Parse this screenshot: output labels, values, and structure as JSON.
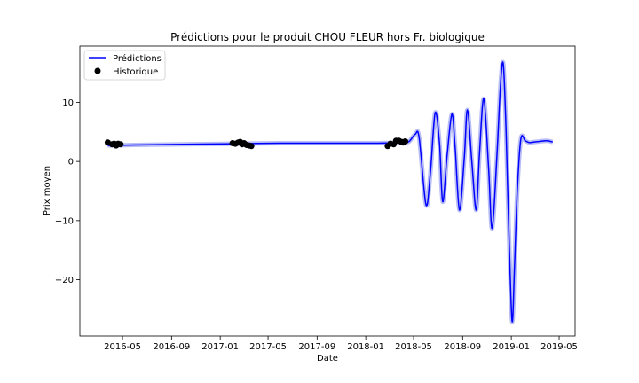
{
  "chart_data": {
    "type": "line",
    "title": "Prédictions pour le produit CHOU FLEUR hors Fr. biologique",
    "xlabel": "Date",
    "ylabel": "Prix moyen",
    "xlim": [
      "2016-01-15",
      "2019-06-10"
    ],
    "ylim": [
      -29.5,
      19.5
    ],
    "x_ticks": [
      "2016-05",
      "2016-09",
      "2017-01",
      "2017-05",
      "2017-09",
      "2018-01",
      "2018-05",
      "2018-09",
      "2019-01",
      "2019-05"
    ],
    "y_ticks": [
      -20,
      -10,
      0,
      10
    ],
    "grid": false,
    "legend_position": "top-left",
    "series": [
      {
        "name": "Prédictions",
        "kind": "line",
        "color": "#0000ff",
        "band_color": "#b8bdf5",
        "x": [
          "2016-03-25",
          "2016-06-01",
          "2016-10-01",
          "2017-02-01",
          "2017-06-01",
          "2017-10-01",
          "2018-02-01",
          "2018-04-05",
          "2018-04-20",
          "2018-05-05",
          "2018-05-15",
          "2018-06-01",
          "2018-06-12",
          "2018-06-24",
          "2018-07-05",
          "2018-07-13",
          "2018-07-24",
          "2018-08-05",
          "2018-08-13",
          "2018-08-24",
          "2018-09-05",
          "2018-09-13",
          "2018-09-24",
          "2018-10-05",
          "2018-10-13",
          "2018-10-24",
          "2018-11-05",
          "2018-11-14",
          "2018-11-26",
          "2018-12-05",
          "2018-12-12",
          "2018-12-19",
          "2018-12-26",
          "2019-01-03",
          "2019-01-09",
          "2019-01-16",
          "2019-01-25",
          "2019-02-05",
          "2019-02-15",
          "2019-02-28",
          "2019-03-15",
          "2019-03-31",
          "2019-04-15"
        ],
        "y": [
          2.7,
          2.8,
          2.9,
          3.0,
          3.1,
          3.1,
          3.1,
          3.2,
          3.4,
          4.6,
          4.0,
          -7.3,
          -2.0,
          8.2,
          3.0,
          -6.8,
          1.0,
          8.0,
          2.5,
          -8.2,
          0.5,
          8.7,
          0.0,
          -8.2,
          1.0,
          10.6,
          -1.0,
          -11.3,
          1.0,
          13.0,
          16.4,
          5.0,
          -12.0,
          -27.0,
          -18.0,
          -5.0,
          3.8,
          3.5,
          3.2,
          3.3,
          3.4,
          3.5,
          3.3
        ]
      },
      {
        "name": "Historique",
        "kind": "scatter",
        "color": "#000000",
        "x": [
          "2016-03-25",
          "2016-04-05",
          "2016-04-10",
          "2016-04-15",
          "2016-04-20",
          "2016-04-26",
          "2017-02-01",
          "2017-02-08",
          "2017-02-15",
          "2017-02-20",
          "2017-02-25",
          "2017-03-02",
          "2017-03-08",
          "2017-03-14",
          "2017-03-20",
          "2018-02-25",
          "2018-03-04",
          "2018-03-12",
          "2018-03-18",
          "2018-03-25",
          "2018-04-01",
          "2018-04-05",
          "2018-04-10"
        ],
        "y": [
          3.2,
          2.9,
          3.0,
          2.7,
          3.0,
          2.9,
          3.1,
          3.0,
          3.2,
          3.3,
          2.9,
          3.1,
          2.8,
          2.7,
          2.6,
          2.6,
          3.0,
          2.9,
          3.5,
          3.5,
          3.3,
          3.2,
          3.4
        ]
      }
    ]
  }
}
